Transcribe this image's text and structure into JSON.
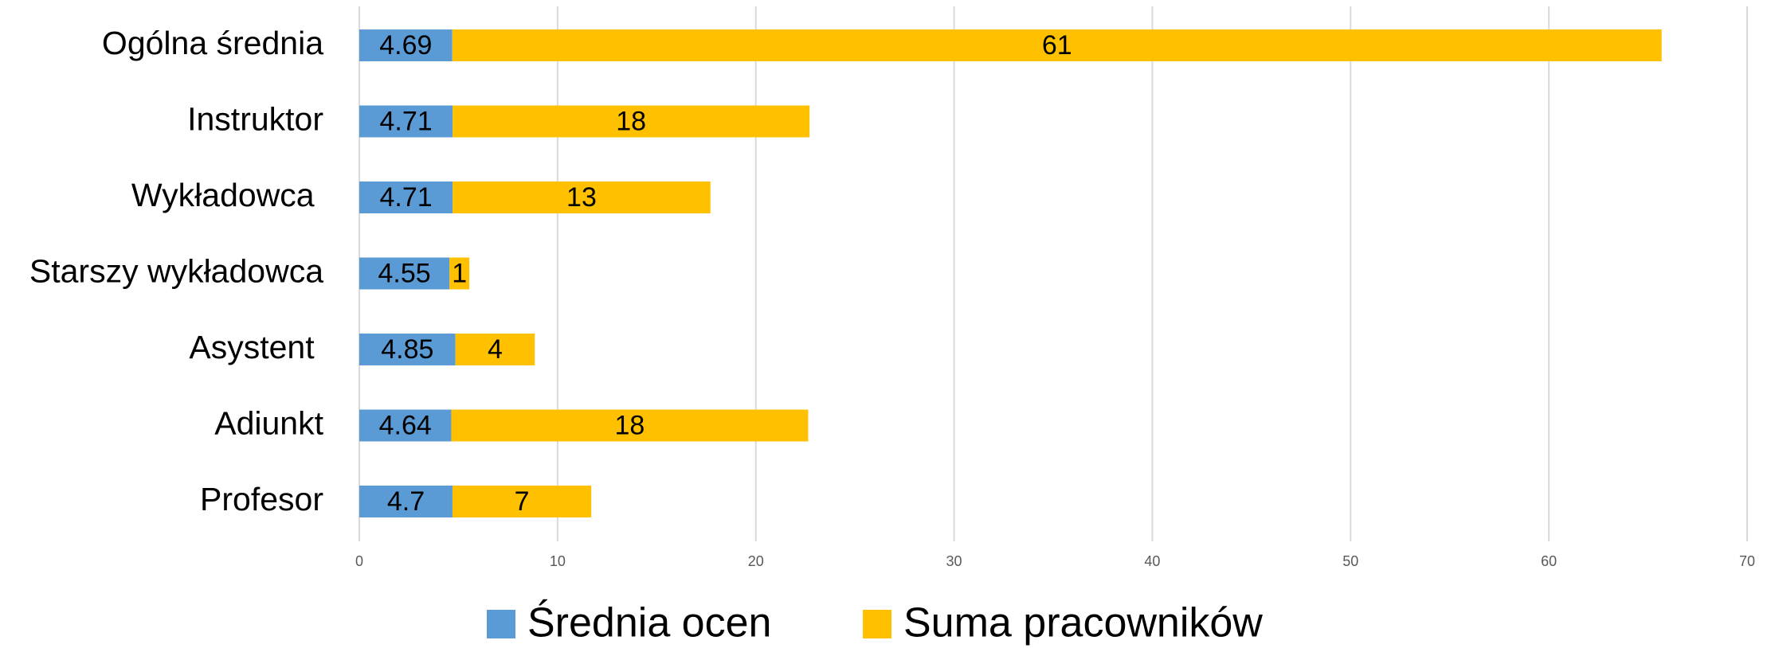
{
  "chart_data": {
    "type": "stacked-bar-horizontal",
    "categories": [
      "Ogólna średnia",
      "Instruktor",
      "Wykładowca ",
      "Starszy wykładowca",
      "Asystent ",
      "Adiunkt",
      "Profesor"
    ],
    "series": [
      {
        "name": "Średnia ocen",
        "color": "#5b9bd5",
        "values": [
          4.69,
          4.71,
          4.71,
          4.55,
          4.85,
          4.64,
          4.7
        ]
      },
      {
        "name": "Suma pracowników",
        "color": "#ffc000",
        "values": [
          61,
          18,
          13,
          1,
          4,
          18,
          7
        ]
      }
    ],
    "xlim": [
      0,
      70
    ],
    "xticks": [
      0,
      10,
      20,
      30,
      40,
      50,
      60,
      70
    ],
    "grid": true
  }
}
